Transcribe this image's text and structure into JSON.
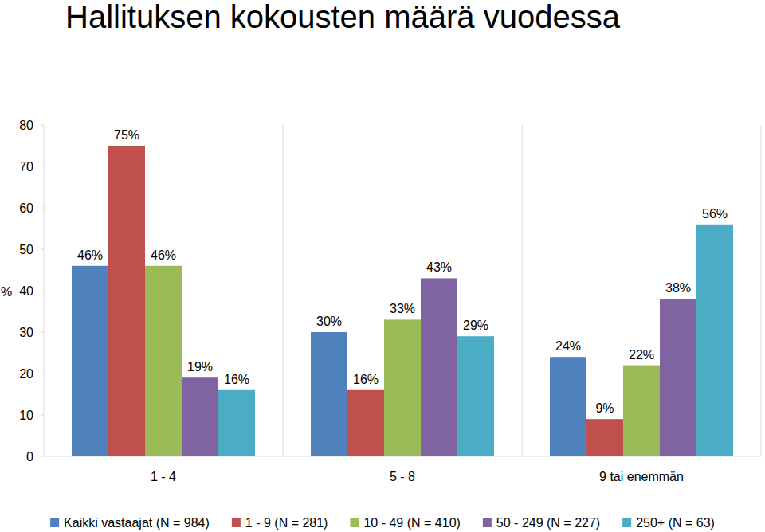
{
  "chart_data": {
    "type": "bar",
    "title": "Hallituksen kokousten määrä vuodessa",
    "ylabel": "%",
    "categories": [
      "1 - 4",
      "5 - 8",
      "9 tai enemmän"
    ],
    "series": [
      {
        "name": "Kaikki vastaajat (N = 984)",
        "color": "#4f81bd",
        "values": [
          46,
          30,
          24
        ],
        "value_labels": [
          "46%",
          "30%",
          "24%"
        ]
      },
      {
        "name": "1 - 9 (N = 281)",
        "color": "#c0504d",
        "values": [
          75,
          16,
          9
        ],
        "value_labels": [
          "75%",
          "16%",
          "9%"
        ]
      },
      {
        "name": "10 - 49 (N = 410)",
        "color": "#9bbb59",
        "values": [
          46,
          33,
          22
        ],
        "value_labels": [
          "46%",
          "33%",
          "22%"
        ]
      },
      {
        "name": "50 - 249 (N = 227)",
        "color": "#8064a2",
        "values": [
          19,
          43,
          38
        ],
        "value_labels": [
          "19%",
          "43%",
          "38%"
        ]
      },
      {
        "name": "250+ (N = 63)",
        "color": "#4bacc6",
        "values": [
          16,
          29,
          56
        ],
        "value_labels": [
          "16%",
          "29%",
          "56%"
        ]
      }
    ],
    "ylim": [
      0,
      80
    ],
    "yticks": [
      0,
      10,
      20,
      30,
      40,
      50,
      60,
      70,
      80
    ],
    "grid": false,
    "legend": "bottom",
    "data_labels": true
  }
}
